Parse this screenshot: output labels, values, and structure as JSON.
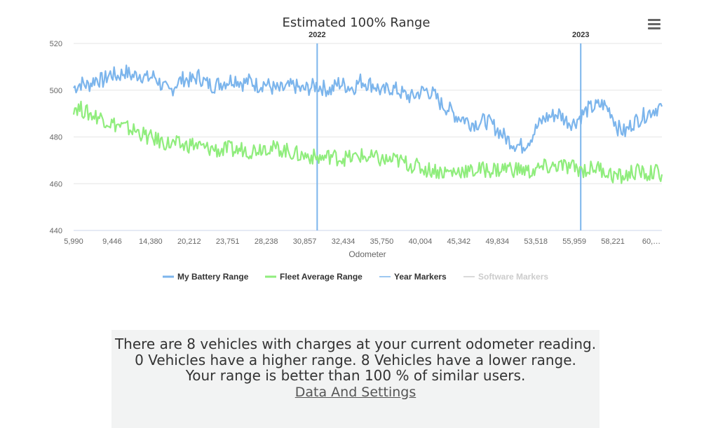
{
  "chart_data": {
    "type": "line",
    "title": "Estimated 100% Range",
    "xlabel": "Odometer",
    "ylabel": "",
    "ylim": [
      440,
      520
    ],
    "yticks": [
      "520",
      "500",
      "480",
      "460",
      "440"
    ],
    "xticks": [
      "5,990",
      "9,446",
      "14,380",
      "20,212",
      "23,751",
      "28,238",
      "30,857",
      "32,434",
      "35,750",
      "40,004",
      "45,342",
      "49,834",
      "53,518",
      "55,959",
      "58,221",
      "60,…"
    ],
    "series": [
      {
        "name": "My Battery Range",
        "color": "#7cb5ec",
        "values": [
          501,
          503,
          502,
          505,
          504,
          507,
          506,
          508,
          506,
          507,
          505,
          506,
          502,
          499,
          503,
          505,
          504,
          506,
          503,
          502,
          503,
          504,
          505,
          503,
          504,
          502,
          503,
          501,
          500,
          501,
          502,
          500,
          501,
          502,
          501,
          500,
          503,
          502,
          501,
          504,
          503,
          502,
          499,
          501,
          500,
          498,
          497,
          499,
          500,
          498,
          494,
          492,
          489,
          488,
          486,
          486,
          487,
          485,
          482,
          479,
          477,
          476,
          479,
          484,
          488,
          489,
          490,
          487,
          486,
          489,
          492,
          493,
          494,
          491,
          484,
          482,
          486,
          488,
          490,
          492,
          493
        ]
      },
      {
        "name": "Fleet Average Range",
        "color": "#90ed7d",
        "values": [
          493,
          492,
          490,
          489,
          488,
          486,
          485,
          484,
          483,
          482,
          480,
          479,
          478,
          477,
          477,
          476,
          477,
          476,
          475,
          475,
          474,
          475,
          474,
          475,
          474,
          475,
          476,
          475,
          475,
          474,
          473,
          472,
          472,
          471,
          471,
          472,
          471,
          471,
          471,
          472,
          471,
          471,
          470,
          470,
          470,
          469,
          468,
          467,
          466,
          466,
          465,
          465,
          465,
          466,
          465,
          466,
          466,
          466,
          466,
          467,
          466,
          466,
          465,
          466,
          467,
          467,
          468,
          467,
          467,
          466,
          466,
          467,
          466,
          464,
          463,
          463,
          465,
          465,
          464,
          465,
          464
        ]
      }
    ],
    "year_markers": [
      {
        "label": "2022",
        "x_fraction": 0.414
      },
      {
        "label": "2023",
        "x_fraction": 0.862
      }
    ],
    "legend": {
      "position": "bottom",
      "items": [
        {
          "name": "My Battery Range",
          "color": "#7cb5ec",
          "enabled": true
        },
        {
          "name": "Fleet Average Range",
          "color": "#90ed7d",
          "enabled": true
        },
        {
          "name": "Year Markers",
          "color": "#7cb5ec",
          "enabled": true
        },
        {
          "name": "Software Markers",
          "color": "#cccccc",
          "enabled": false
        }
      ]
    },
    "grid": true
  },
  "info": {
    "line1": "There are 8 vehicles with charges at your current odometer reading.",
    "line2": "0 Vehicles have a higher range. 8 Vehicles have a lower range.",
    "line3": "Your range is better than 100 % of similar users.",
    "link": "Data And Settings"
  },
  "menu_icon": "hamburger-menu-icon"
}
